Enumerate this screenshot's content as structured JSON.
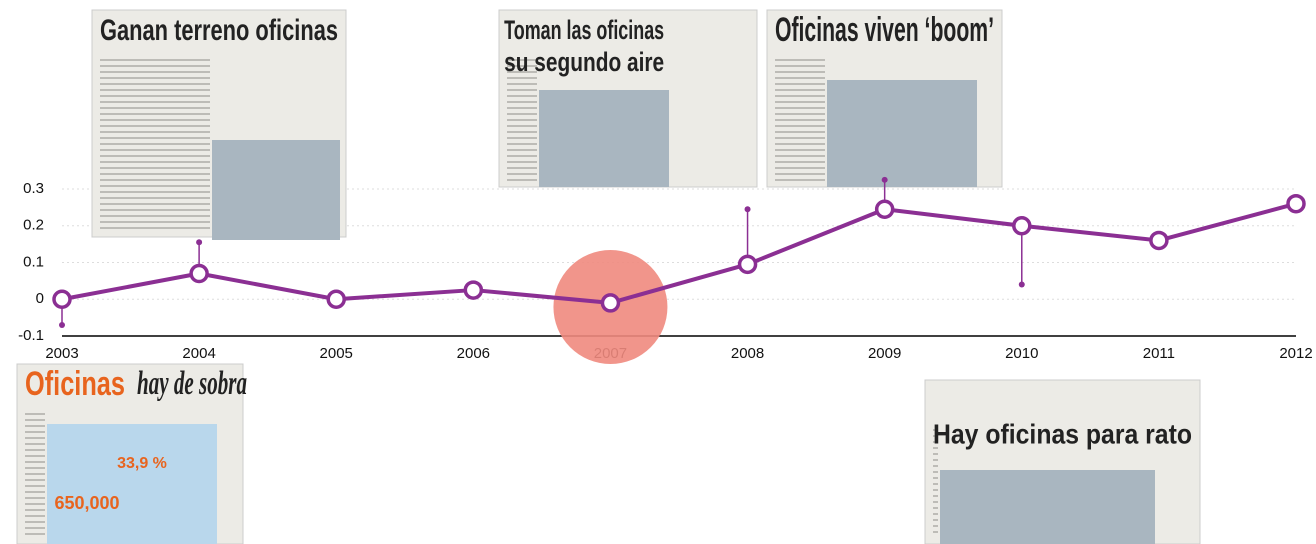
{
  "chart_data": {
    "type": "line",
    "x": [
      2003,
      2004,
      2005,
      2006,
      2007,
      2008,
      2009,
      2010,
      2011,
      2012
    ],
    "values": [
      0,
      0.07,
      0,
      0.025,
      -0.01,
      0.095,
      0.245,
      0.2,
      0.16,
      0.26
    ],
    "stems": [
      -0.07,
      0.155,
      null,
      null,
      null,
      0.245,
      0.325,
      0.04,
      null,
      null
    ],
    "color": "#8b2f93",
    "highlight": 2007,
    "highlight_color": "#ef8a7e",
    "xlim": [
      2003,
      2012
    ],
    "xticks": [
      2003,
      2004,
      2005,
      2006,
      2007,
      2008,
      2009,
      2010,
      2011,
      2012
    ],
    "ylim": [
      -0.1,
      0.3
    ],
    "yticks": [
      -0.1,
      0,
      0.1,
      0.2,
      0.3
    ],
    "grid": true,
    "clippings": [
      {
        "lines": [
          "Ganan terreno oficinas"
        ]
      },
      {
        "lines": [
          "Toman las oficinas",
          "su segundo aire"
        ]
      },
      {
        "lines": [
          "Oficinas viven ‘boom’"
        ]
      },
      {
        "lines": [
          "Oficinas",
          "hay de sobra"
        ],
        "figures": [
          "33,9 %",
          "650,000"
        ]
      },
      {
        "lines": [
          "Hay oficinas para rato"
        ]
      }
    ]
  }
}
